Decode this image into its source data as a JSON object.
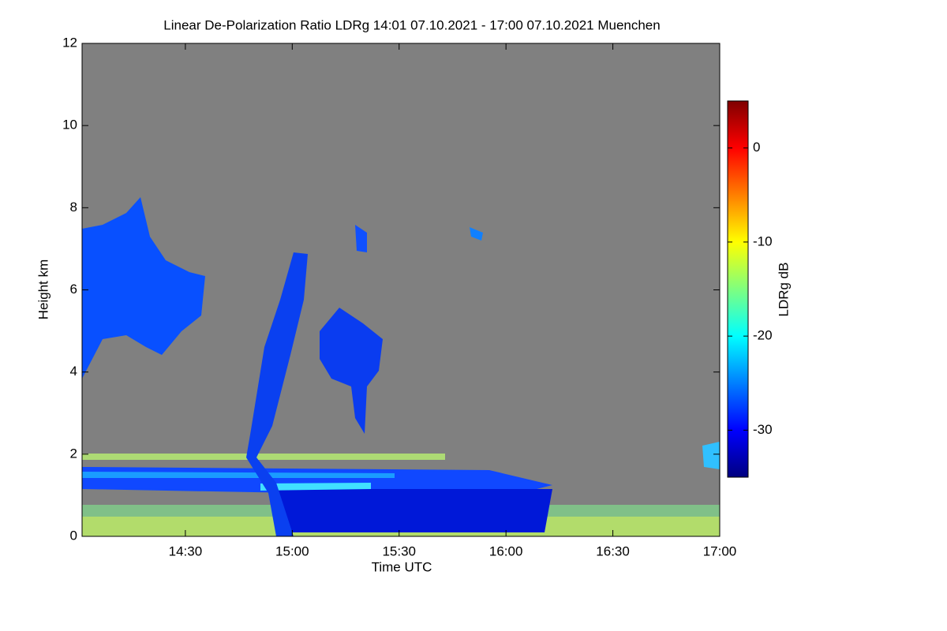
{
  "chart_data": {
    "type": "heatmap",
    "title": "Linear De-Polarization Ratio LDRg   14:01 07.10.2021 - 17:00 07.10.2021 Muenchen",
    "xlabel": "Time UTC",
    "ylabel": "Height km",
    "xlim": [
      14.0167,
      17.0
    ],
    "xticks": [
      {
        "value": 14.5,
        "label": "14:30"
      },
      {
        "value": 15.0,
        "label": "15:00"
      },
      {
        "value": 15.5,
        "label": "15:30"
      },
      {
        "value": 16.0,
        "label": "16:00"
      },
      {
        "value": 16.5,
        "label": "16:30"
      },
      {
        "value": 17.0,
        "label": "17:00"
      }
    ],
    "ylim": [
      0,
      12
    ],
    "yticks": [
      0,
      2,
      4,
      6,
      8,
      10,
      12
    ],
    "background_color": "#808080",
    "colorbar": {
      "label": "LDRg dB",
      "lim": [
        -35,
        5
      ],
      "ticks": [
        -30,
        -20,
        -10,
        0
      ],
      "colormap": [
        "#00007f",
        "#0000ff",
        "#007fff",
        "#00ffff",
        "#7fff7f",
        "#ffff00",
        "#ff7f00",
        "#ff0000",
        "#7f0000"
      ]
    }
  }
}
